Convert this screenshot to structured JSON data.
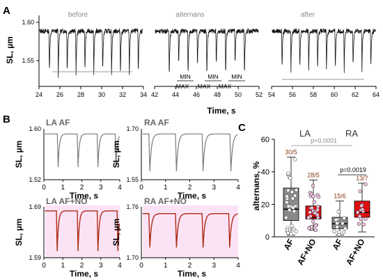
{
  "figure": {
    "panel_labels": [
      "A",
      "B",
      "C"
    ],
    "sl_label": "SL, µm",
    "time_label": "Time, s"
  },
  "chart_data": [
    {
      "panel": "A",
      "type": "line",
      "ylabel": "SL, µm",
      "xlabel": "Time, s",
      "ylim": [
        1.52,
        1.61
      ],
      "y_ticks": [
        "1.60",
        "1.55"
      ],
      "segments": [
        {
          "name": "before",
          "xlim": [
            24,
            34
          ],
          "x_ticks": [
            "24",
            "26",
            "28",
            "30",
            "32",
            "34"
          ],
          "beats": [
            25.0,
            25.85,
            26.7,
            27.55,
            28.4,
            29.25,
            30.1,
            30.95,
            31.8,
            32.65,
            33.5
          ],
          "beat_min": [
            1.535,
            1.535,
            1.535,
            1.535,
            1.535,
            1.535,
            1.535,
            1.535,
            1.535,
            1.535,
            1.535
          ],
          "baseline": 1.593
        },
        {
          "name": "alternans",
          "xlim": [
            42,
            52
          ],
          "x_ticks": [
            "42",
            "44",
            "46",
            "48",
            "50",
            "52"
          ],
          "beats": [
            43.4,
            44.3,
            45.2,
            46.1,
            47.0,
            47.9,
            48.8,
            49.7,
            50.6
          ],
          "beat_min": [
            1.53,
            1.545,
            1.53,
            1.545,
            1.53,
            1.545,
            1.53,
            1.545,
            1.53
          ],
          "baseline": 1.593
        },
        {
          "name": "after",
          "xlim": [
            54,
            64
          ],
          "x_ticks": [
            "54",
            "56",
            "58",
            "60",
            "62",
            "64"
          ],
          "beats": [
            55.0,
            55.85,
            56.7,
            57.55,
            58.4,
            59.25,
            60.1,
            60.95,
            61.8,
            62.65,
            63.5
          ],
          "beat_min": [
            1.542,
            1.542,
            1.542,
            1.542,
            1.542,
            1.542,
            1.542,
            1.542,
            1.542,
            1.542,
            1.542
          ],
          "baseline": 1.593
        }
      ],
      "annotations": {
        "min_label": "MIN",
        "max_label": "MAX"
      }
    },
    {
      "panel": "B",
      "type": "line",
      "xlabel": "Time, s",
      "ylabel": "SL, µm",
      "x_ticks": [
        "0",
        "1",
        "2",
        "3",
        "4"
      ],
      "xlim": [
        0,
        4
      ],
      "plots": [
        {
          "title": "LA AF",
          "color": "#7a7a7a",
          "ylim": [
            1.52,
            1.6
          ],
          "y_ticks": [
            "1.60",
            "1.52"
          ],
          "beats": [
            0.75,
            1.8,
            2.85,
            3.8
          ],
          "min": 1.54,
          "baseline": 1.592
        },
        {
          "title": "RA AF",
          "color": "#7a7a7a",
          "ylim": [
            1.55,
            1.7
          ],
          "y_ticks": [
            "1.70",
            "1.55"
          ],
          "beats": [
            0.35,
            1.45,
            2.55,
            3.7
          ],
          "min": 1.575,
          "baseline": 1.685
        },
        {
          "title": "LA AF+NO",
          "color": "#c41e1e",
          "ylim": [
            1.59,
            1.69
          ],
          "y_ticks": [
            "1.69",
            "1.59"
          ],
          "beats": [
            0.7,
            1.8,
            2.85,
            3.9
          ],
          "min": 1.603,
          "baseline": 1.682
        },
        {
          "title": "RA AF+NO",
          "color": "#c41e1e",
          "ylim": [
            1.7,
            1.76
          ],
          "y_ticks": [
            "1.76",
            "1.70"
          ],
          "beats": [
            0.35,
            1.45,
            2.55,
            3.65
          ],
          "min": 1.712,
          "baseline": 1.752
        }
      ]
    },
    {
      "panel": "C",
      "type": "box",
      "ylabel": "alternans, %",
      "ylim": [
        0,
        60
      ],
      "y_ticks": [
        "0",
        "20",
        "40",
        "60"
      ],
      "groups": [
        {
          "label": "LA",
          "boxes": [
            {
              "category": "AF",
              "color": "#8a8a8a",
              "n": "30/5",
              "min": 1,
              "q1": 10,
              "median": 17,
              "q3": 30,
              "max": 49
            },
            {
              "category": "AF+NO",
              "color": "#e01010",
              "n": "28/5",
              "min": 4,
              "q1": 11,
              "median": 12,
              "q3": 19,
              "max": 35
            }
          ]
        },
        {
          "label": "RA",
          "boxes": [
            {
              "category": "AF",
              "color": "#8a8a8a",
              "n": "15/6",
              "min": 1,
              "q1": 5,
              "median": 8,
              "q3": 12,
              "max": 22
            },
            {
              "category": "AF+NO",
              "color": "#e01010",
              "n": "13/7",
              "min": 3,
              "q1": 12,
              "median": 15,
              "q3": 22,
              "max": 33
            }
          ]
        }
      ],
      "stats": [
        "p<0.0001",
        "p=0.0019"
      ]
    }
  ]
}
